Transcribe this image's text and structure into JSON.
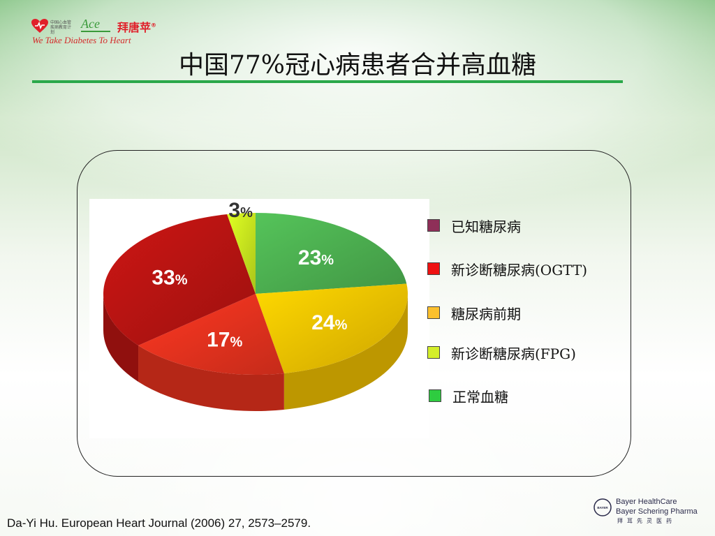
{
  "slide": {
    "title": "中国77%冠心病患者合并高血糖",
    "citation": "Da-Yi Hu. European Heart Journal (2006) 27, 2573–2579."
  },
  "logos": {
    "program_small": "中国心血管疾病教育计划",
    "ace": "Ace",
    "brand": "拜唐苹",
    "brand_mark": "®",
    "tagline": "We Take Diabetes To Heart"
  },
  "bayer": {
    "line1": "Bayer HealthCare",
    "line2": "Bayer Schering Pharma",
    "line3": "拜耳先灵医药",
    "cross_text": "BAYER"
  },
  "colors": {
    "accent_rule": "#2aa84a"
  },
  "chart_data": {
    "type": "pie",
    "style": "3d",
    "slices": [
      {
        "label": "正常血糖",
        "value": 23,
        "display": "23",
        "color": "#4caf50"
      },
      {
        "label": "糖尿病前期",
        "value": 24,
        "display": "24",
        "color": "#f2c200"
      },
      {
        "label": "新诊断糖尿病(OGTT)",
        "value": 17,
        "display": "17",
        "color": "#e8321e"
      },
      {
        "label": "已知糖尿病",
        "value": 33,
        "display": "33",
        "color": "#b81412"
      },
      {
        "label": "新诊断糖尿病(FPG)",
        "value": 3,
        "display": "3",
        "color": "#c8e61e"
      }
    ],
    "percent_sign": "%",
    "legend": {
      "placement": "right",
      "items": [
        {
          "label": "已知糖尿病",
          "color": "#8e2f58"
        },
        {
          "label": "新诊断糖尿病(OGTT)",
          "color": "#ee1111"
        },
        {
          "label": "糖尿病前期",
          "color": "#fbc02d"
        },
        {
          "label": "新诊断糖尿病(FPG)",
          "color": "#d4ee2a"
        },
        {
          "label": "正常血糖",
          "color": "#2ecc40"
        }
      ]
    }
  }
}
